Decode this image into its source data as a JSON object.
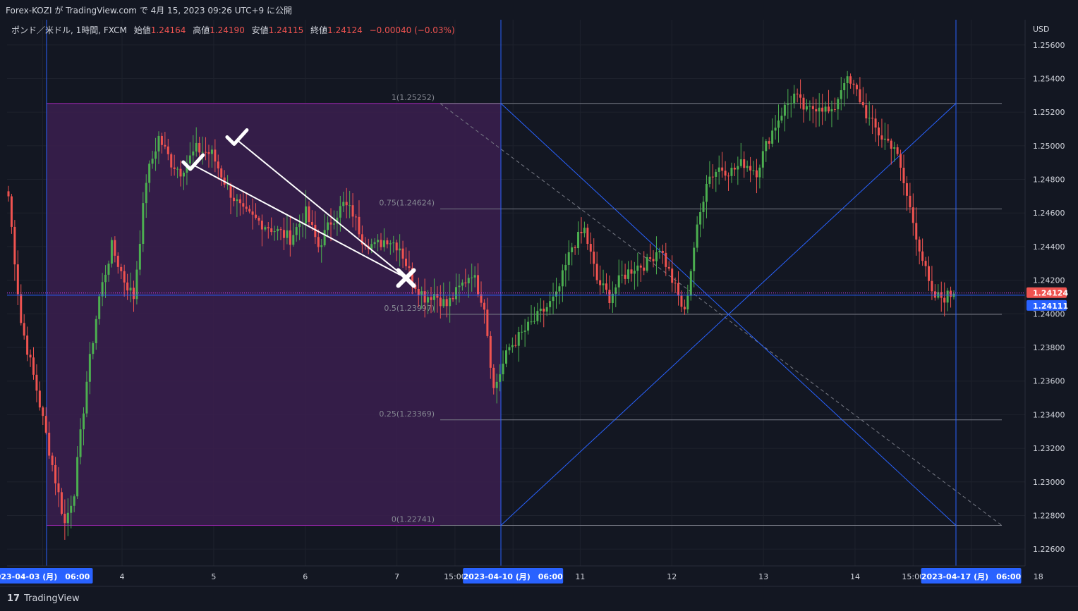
{
  "header": {
    "publish_text": "Forex-KOZI が TradingView.com で 4月 15, 2023 09:26 UTC+9 に公開"
  },
  "legend": {
    "symbol": "ポンド／米ドル, 1時間, FXCM",
    "open_label": "始値",
    "open": "1.24164",
    "high_label": "高値",
    "high": "1.24190",
    "low_label": "安値",
    "low": "1.24115",
    "close_label": "終値",
    "close": "1.24124",
    "change": "−0.00040 (−0.03%)"
  },
  "footer": {
    "brand": "TradingView",
    "logo_icon": "tradingview-logo-icon"
  },
  "colors": {
    "background": "#131722",
    "up": "#26a69a",
    "up_body": "#4caf50",
    "down": "#ef5350",
    "grid": "#1e222d",
    "fib_rect": "#3b1f4f",
    "fib_border": "#9c27b0",
    "blue": "#2962ff",
    "fib_line": "#787b86"
  },
  "chart_data": {
    "type": "candlestick",
    "currency_label": "USD",
    "ylim": [
      1.225,
      1.2575
    ],
    "y_ticks": [
      "1.25600",
      "1.25400",
      "1.25200",
      "1.25000",
      "1.24800",
      "1.24600",
      "1.24400",
      "1.24200",
      "1.24000",
      "1.23800",
      "1.23600",
      "1.23400",
      "1.23200",
      "1.23000",
      "1.22800",
      "1.22600"
    ],
    "x_ticks": [
      {
        "label": "023-04-03 (月)　06:00",
        "highlight": true,
        "pos": 0.035
      },
      {
        "label": "4",
        "pos": 0.113
      },
      {
        "label": "5",
        "pos": 0.203
      },
      {
        "label": "6",
        "pos": 0.293
      },
      {
        "label": "7",
        "pos": 0.383
      },
      {
        "label": "15:00",
        "pos": 0.44
      },
      {
        "label": "2023-04-10 (月)　06:00",
        "highlight": true,
        "pos": 0.497
      },
      {
        "label": "11",
        "pos": 0.563
      },
      {
        "label": "12",
        "pos": 0.653
      },
      {
        "label": "13",
        "pos": 0.743
      },
      {
        "label": "14",
        "pos": 0.833
      },
      {
        "label": "15:00",
        "pos": 0.89
      },
      {
        "label": "2023-04-17 (月)　06:00",
        "highlight": true,
        "pos": 0.947
      },
      {
        "label": "18",
        "pos": 1.013
      }
    ],
    "price_labels": {
      "last": "1.24124",
      "crosshair": "1.24111"
    },
    "fib_levels": [
      {
        "label": "1(1.25252)",
        "value": 1.25252
      },
      {
        "label": "0.75(1.24624)",
        "value": 1.24624
      },
      {
        "label": "0.5(1.23997)",
        "value": 1.23997
      },
      {
        "label": "0.25(1.23369)",
        "value": 1.23369
      },
      {
        "label": "0(1.22741)",
        "value": 1.22741
      }
    ],
    "crosshair_price": 1.24111,
    "close_price": 1.24124,
    "swings": [
      [
        0,
        1.247
      ],
      [
        4,
        1.2395
      ],
      [
        9,
        1.2355
      ],
      [
        14,
        1.231
      ],
      [
        18,
        1.2275
      ],
      [
        21,
        1.2295
      ],
      [
        25,
        1.236
      ],
      [
        29,
        1.241
      ],
      [
        33,
        1.244
      ],
      [
        37,
        1.242
      ],
      [
        40,
        1.241
      ],
      [
        44,
        1.248
      ],
      [
        48,
        1.2505
      ],
      [
        52,
        1.249
      ],
      [
        55,
        1.2485
      ],
      [
        60,
        1.2498
      ],
      [
        65,
        1.2495
      ],
      [
        70,
        1.2475
      ],
      [
        75,
        1.246
      ],
      [
        80,
        1.2455
      ],
      [
        85,
        1.245
      ],
      [
        90,
        1.2445
      ],
      [
        95,
        1.246
      ],
      [
        99,
        1.244
      ],
      [
        103,
        1.2455
      ],
      [
        107,
        1.2465
      ],
      [
        110,
        1.246
      ],
      [
        113,
        1.2445
      ],
      [
        117,
        1.244
      ],
      [
        121,
        1.2445
      ],
      [
        125,
        1.244
      ],
      [
        129,
        1.242
      ],
      [
        133,
        1.241
      ],
      [
        136,
        1.2412
      ],
      [
        140,
        1.2405
      ],
      [
        144,
        1.2415
      ],
      [
        148,
        1.2425
      ],
      [
        152,
        1.2405
      ],
      [
        155,
        1.2355
      ],
      [
        160,
        1.238
      ],
      [
        165,
        1.239
      ],
      [
        170,
        1.24
      ],
      [
        175,
        1.241
      ],
      [
        180,
        1.244
      ],
      [
        184,
        1.245
      ],
      [
        188,
        1.242
      ],
      [
        192,
        1.241
      ],
      [
        196,
        1.2422
      ],
      [
        200,
        1.2428
      ],
      [
        204,
        1.243
      ],
      [
        208,
        1.244
      ],
      [
        212,
        1.242
      ],
      [
        216,
        1.24
      ],
      [
        219,
        1.244
      ],
      [
        223,
        1.248
      ],
      [
        227,
        1.2487
      ],
      [
        231,
        1.2485
      ],
      [
        235,
        1.249
      ],
      [
        239,
        1.2485
      ],
      [
        243,
        1.2505
      ],
      [
        247,
        1.252
      ],
      [
        251,
        1.253
      ],
      [
        255,
        1.252
      ],
      [
        259,
        1.2525
      ],
      [
        263,
        1.2518
      ],
      [
        267,
        1.254
      ],
      [
        271,
        1.2532
      ],
      [
        275,
        1.2515
      ],
      [
        279,
        1.2505
      ],
      [
        283,
        1.25
      ],
      [
        287,
        1.247
      ],
      [
        291,
        1.244
      ],
      [
        295,
        1.241
      ],
      [
        299,
        1.241
      ],
      [
        302,
        1.2412
      ]
    ],
    "marks": [
      {
        "name": "check-mark-1",
        "icon": "check-mark-icon",
        "bar": 59,
        "value": 1.24886
      },
      {
        "name": "check-mark-2",
        "icon": "check-mark-icon",
        "bar": 73,
        "value": 1.25035
      },
      {
        "name": "cross-mark",
        "icon": "x-mark-icon",
        "bar": 127,
        "value": 1.24213
      }
    ]
  }
}
